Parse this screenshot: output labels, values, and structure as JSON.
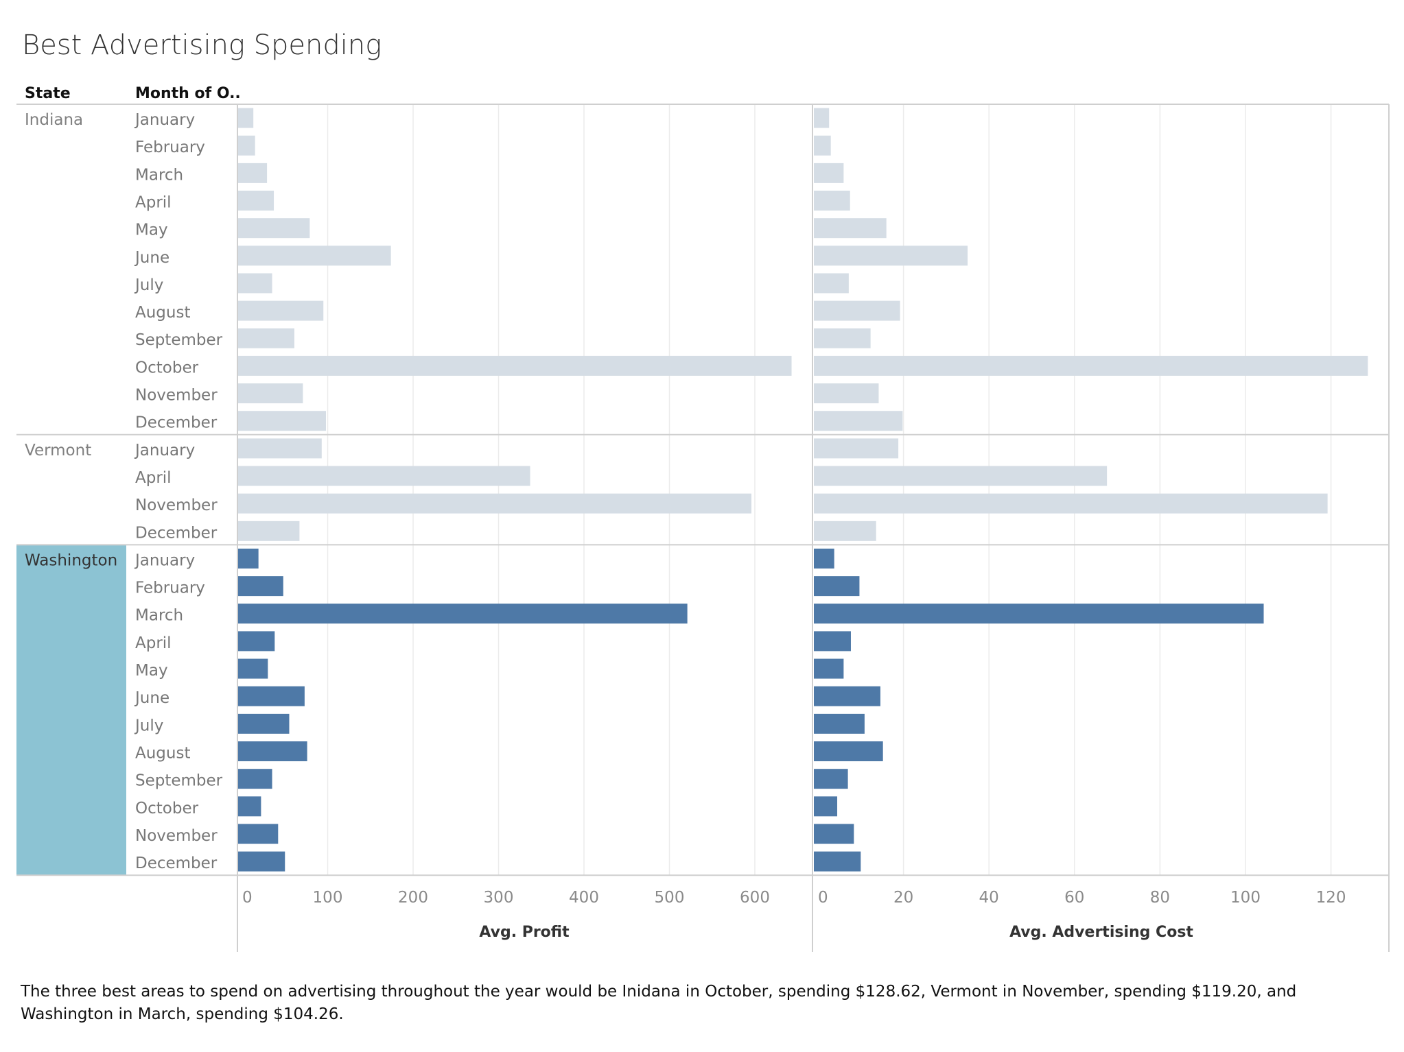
{
  "title": "Best Advertising Spending",
  "headers": {
    "state": "State",
    "month": "Month of O.."
  },
  "caption": "The three best areas to spend on advertising throughout the year would be Inidana in October, spending $128.62, Vermont in November, spending $119.20, and Washington in March, spending $104.26.",
  "colors": {
    "highlight_bar": "#4e79a7",
    "dim_bar": "#d5dde5",
    "highlight_band": "#8cc3d3",
    "gridline": "#ebebeb",
    "divider": "#cfcfcf"
  },
  "highlighted_state": "Washington",
  "chart_data": [
    {
      "type": "bar",
      "orientation": "horizontal",
      "xlabel": "Avg. Profit",
      "xlim": [
        0,
        650
      ],
      "ticks": [
        0,
        100,
        200,
        300,
        400,
        500,
        600
      ],
      "grid": true,
      "groups": [
        {
          "state": "Indiana",
          "categories": [
            "January",
            "February",
            "March",
            "April",
            "May",
            "June",
            "July",
            "August",
            "September",
            "October",
            "November",
            "December"
          ],
          "values": [
            13,
            15,
            29,
            37,
            79,
            174,
            35,
            95,
            61,
            643,
            71,
            98
          ]
        },
        {
          "state": "Vermont",
          "categories": [
            "January",
            "April",
            "November",
            "December"
          ],
          "values": [
            93,
            337,
            596,
            67
          ]
        },
        {
          "state": "Washington",
          "categories": [
            "January",
            "February",
            "March",
            "April",
            "May",
            "June",
            "July",
            "August",
            "September",
            "October",
            "November",
            "December"
          ],
          "values": [
            19,
            48,
            521,
            38,
            30,
            73,
            55,
            76,
            35,
            22,
            42,
            50
          ]
        }
      ]
    },
    {
      "type": "bar",
      "orientation": "horizontal",
      "xlabel": "Avg. Advertising Cost",
      "xlim": [
        0,
        135
      ],
      "ticks": [
        0,
        20,
        40,
        60,
        80,
        100,
        120
      ],
      "grid": true,
      "groups": [
        {
          "state": "Indiana",
          "categories": [
            "January",
            "February",
            "March",
            "April",
            "May",
            "June",
            "July",
            "August",
            "September",
            "October",
            "November",
            "December"
          ],
          "values": [
            2.6,
            3.0,
            6.0,
            7.5,
            16,
            35,
            7.2,
            19.2,
            12.3,
            128.62,
            14.2,
            19.8
          ]
        },
        {
          "state": "Vermont",
          "categories": [
            "January",
            "April",
            "November",
            "December"
          ],
          "values": [
            18.8,
            67.6,
            119.2,
            13.6
          ]
        },
        {
          "state": "Washington",
          "categories": [
            "January",
            "February",
            "March",
            "April",
            "May",
            "June",
            "July",
            "August",
            "September",
            "October",
            "November",
            "December"
          ],
          "values": [
            3.8,
            9.7,
            104.26,
            7.7,
            6.0,
            14.6,
            10.9,
            15.2,
            7.0,
            4.5,
            8.4,
            10.0
          ]
        }
      ]
    }
  ]
}
